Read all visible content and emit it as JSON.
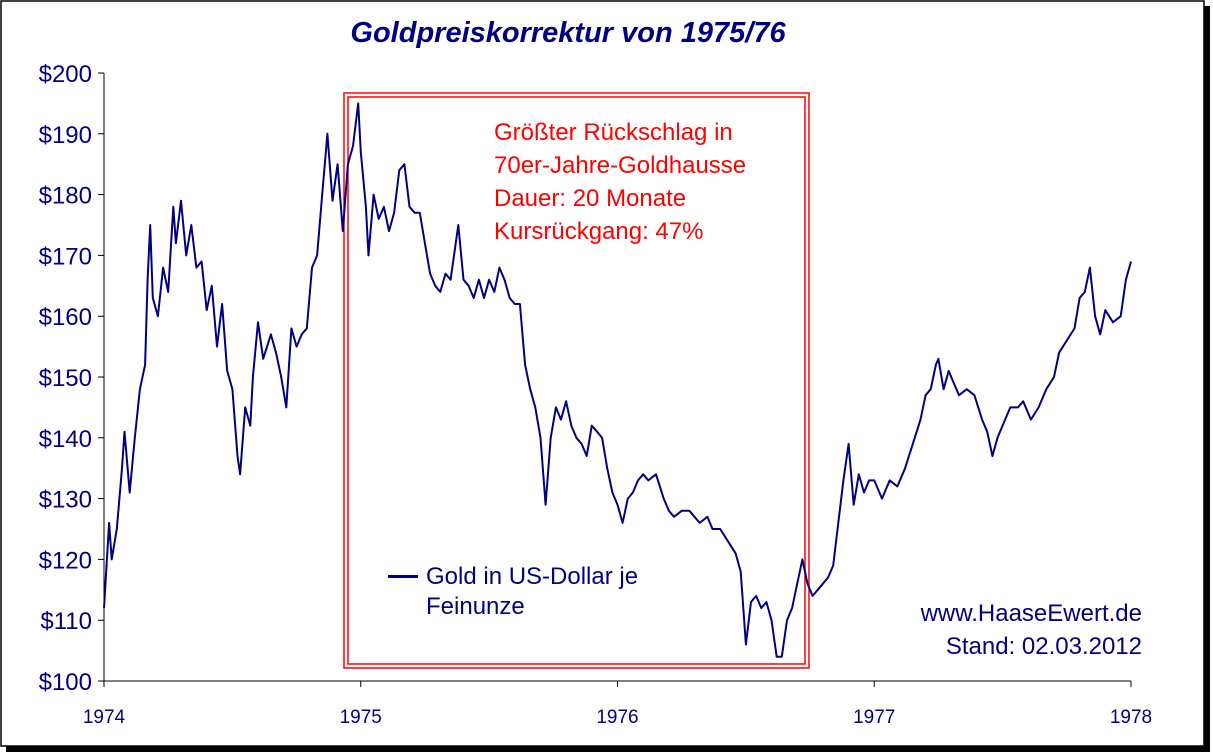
{
  "chart_data": {
    "type": "line",
    "title": "Goldpreiskorrektur von 1975/76",
    "annotations": [
      "Größter Rückschlag in",
      "70er-Jahre-Goldhausse",
      "Dauer: 20 Monate",
      "Kursrückgang: 47%"
    ],
    "notes": [
      "www.HaaseEwert.de",
      "Stand: 02.03.2012"
    ],
    "xlim": [
      1974,
      1978
    ],
    "xticks": [
      1974,
      1975,
      1976,
      1977,
      1978
    ],
    "ylim": [
      100,
      200
    ],
    "yticks": [
      {
        "value": 100,
        "label": "$100"
      },
      {
        "value": 110,
        "label": "$110"
      },
      {
        "value": 120,
        "label": "$120"
      },
      {
        "value": 130,
        "label": "$130"
      },
      {
        "value": 140,
        "label": "$140"
      },
      {
        "value": 150,
        "label": "$150"
      },
      {
        "value": 160,
        "label": "$160"
      },
      {
        "value": 170,
        "label": "$170"
      },
      {
        "value": 180,
        "label": "$180"
      },
      {
        "value": 190,
        "label": "$190"
      },
      {
        "value": 200,
        "label": "$200"
      }
    ],
    "grid": false,
    "x": [
      1974.0,
      1974.02,
      1974.03,
      1974.05,
      1974.07,
      1974.08,
      1974.1,
      1974.12,
      1974.14,
      1974.16,
      1974.17,
      1974.18,
      1974.19,
      1974.21,
      1974.23,
      1974.25,
      1974.27,
      1974.28,
      1974.3,
      1974.32,
      1974.34,
      1974.36,
      1974.38,
      1974.4,
      1974.42,
      1974.44,
      1974.46,
      1974.48,
      1974.5,
      1974.52,
      1974.53,
      1974.55,
      1974.57,
      1974.58,
      1974.6,
      1974.62,
      1974.65,
      1974.67,
      1974.69,
      1974.71,
      1974.73,
      1974.75,
      1974.77,
      1974.79,
      1974.81,
      1974.83,
      1974.85,
      1974.87,
      1974.89,
      1974.91,
      1974.93,
      1974.95,
      1974.97,
      1974.99,
      1975.0,
      1975.02,
      1975.03,
      1975.05,
      1975.07,
      1975.09,
      1975.11,
      1975.13,
      1975.15,
      1975.17,
      1975.19,
      1975.21,
      1975.23,
      1975.25,
      1975.27,
      1975.29,
      1975.31,
      1975.33,
      1975.35,
      1975.38,
      1975.4,
      1975.42,
      1975.44,
      1975.46,
      1975.48,
      1975.5,
      1975.52,
      1975.54,
      1975.56,
      1975.58,
      1975.6,
      1975.62,
      1975.64,
      1975.66,
      1975.68,
      1975.7,
      1975.72,
      1975.74,
      1975.76,
      1975.78,
      1975.8,
      1975.82,
      1975.84,
      1975.86,
      1975.88,
      1975.9,
      1975.92,
      1975.94,
      1975.96,
      1975.98,
      1976.0,
      1976.02,
      1976.04,
      1976.06,
      1976.08,
      1976.1,
      1976.12,
      1976.15,
      1976.18,
      1976.2,
      1976.22,
      1976.25,
      1976.28,
      1976.3,
      1976.32,
      1976.35,
      1976.37,
      1976.4,
      1976.43,
      1976.46,
      1976.48,
      1976.5,
      1976.52,
      1976.54,
      1976.56,
      1976.58,
      1976.6,
      1976.62,
      1976.64,
      1976.66,
      1976.68,
      1976.7,
      1976.72,
      1976.74,
      1976.76,
      1976.78,
      1976.8,
      1976.82,
      1976.84,
      1976.86,
      1976.88,
      1976.9,
      1976.92,
      1976.94,
      1976.96,
      1976.98,
      1977.0,
      1977.03,
      1977.06,
      1977.09,
      1977.12,
      1977.15,
      1977.18,
      1977.2,
      1977.22,
      1977.24,
      1977.25,
      1977.27,
      1977.29,
      1977.31,
      1977.33,
      1977.36,
      1977.39,
      1977.42,
      1977.44,
      1977.46,
      1977.48,
      1977.5,
      1977.53,
      1977.56,
      1977.58,
      1977.61,
      1977.64,
      1977.67,
      1977.7,
      1977.72,
      1977.75,
      1977.78,
      1977.8,
      1977.82,
      1977.84,
      1977.86,
      1977.88,
      1977.9,
      1977.93,
      1977.96,
      1977.98,
      1978.0
    ],
    "series": [
      {
        "name": "Gold in US-Dollar je Feinunze",
        "color": "#000080",
        "values": [
          112,
          126,
          120,
          125,
          135,
          141,
          131,
          140,
          148,
          152,
          166,
          175,
          163,
          160,
          168,
          164,
          178,
          172,
          179,
          170,
          175,
          168,
          169,
          161,
          165,
          155,
          162,
          151,
          148,
          137,
          134,
          145,
          142,
          150,
          159,
          153,
          157,
          154,
          150,
          145,
          158,
          155,
          157,
          158,
          168,
          170,
          180,
          190,
          179,
          185,
          174,
          185,
          188,
          195,
          187,
          178,
          170,
          180,
          176,
          178,
          174,
          177,
          184,
          185,
          178,
          177,
          177,
          172,
          167,
          165,
          164,
          167,
          166,
          175,
          166,
          165,
          163,
          166,
          163,
          166,
          164,
          168,
          166,
          163,
          162,
          162,
          152,
          148,
          145,
          140,
          129,
          140,
          145,
          143,
          146,
          142,
          140,
          139,
          137,
          142,
          141,
          140,
          135,
          131,
          129,
          126,
          130,
          131,
          133,
          134,
          133,
          134,
          130,
          128,
          127,
          128,
          128,
          127,
          126,
          127,
          125,
          125,
          123,
          121,
          118,
          106,
          113,
          114,
          112,
          113,
          110,
          104,
          104,
          110,
          112,
          116,
          120,
          116,
          114,
          115,
          116,
          117,
          119,
          126,
          133,
          139,
          129,
          134,
          131,
          133,
          133,
          130,
          133,
          132,
          135,
          139,
          143,
          147,
          148,
          152,
          153,
          148,
          151,
          149,
          147,
          148,
          147,
          143,
          141,
          137,
          140,
          142,
          145,
          145,
          146,
          143,
          145,
          148,
          150,
          154,
          156,
          158,
          163,
          164,
          168,
          160,
          157,
          161,
          159,
          160,
          166,
          169
        ]
      }
    ]
  }
}
